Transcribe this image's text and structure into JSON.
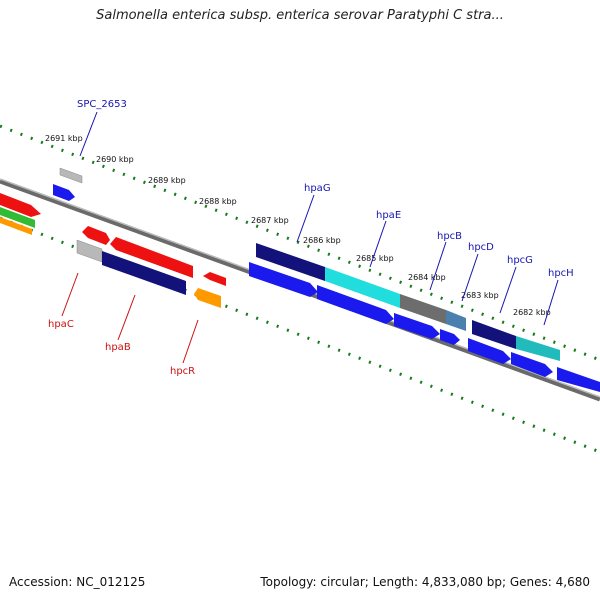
{
  "title": "Salmonella enterica subsp. enterica serovar Paratyphi C stra...",
  "footer": {
    "accession": "Accession: NC_012125",
    "summary": "Topology: circular; Length: 4,833,080 bp; Genes: 4,680"
  },
  "scale_labels": [
    "2691 kbp",
    "2690 kbp",
    "2689 kbp",
    "2688 kbp",
    "2687 kbp",
    "2686 kbp",
    "2685 kbp",
    "2684 kbp",
    "2683 kbp",
    "2682 kbp"
  ],
  "genes_forward_labels": [
    "SPC_2653",
    "hpaG",
    "hpaE",
    "hpcB",
    "hpcD",
    "hpcG",
    "hpcH"
  ],
  "genes_reverse_labels": [
    "hpaC",
    "hpaB",
    "hpcR"
  ],
  "colors": {
    "backbone": "#777777",
    "tick": "#1a7a1a",
    "label_forward": "#1515b0",
    "label_reverse": "#cc1111",
    "blue_cds": "#1a1aee",
    "navy": "#12127a",
    "cyan": "#22dddd",
    "teal": "#22bbbb",
    "gray": "#6d6d6d",
    "steel": "#4a7fae",
    "red": "#ee1111",
    "orange": "#ff9900",
    "green": "#33bb33",
    "silver": "#b8b8b8"
  }
}
